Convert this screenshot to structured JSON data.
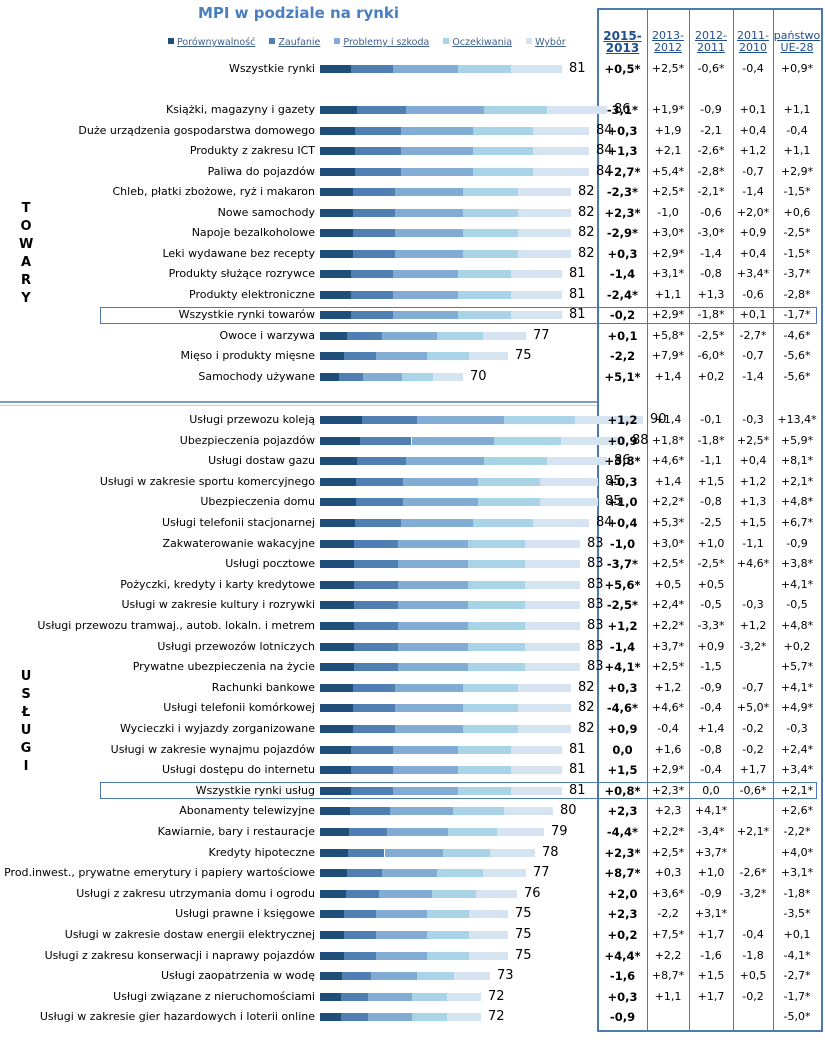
{
  "chart_data": {
    "type": "bar",
    "title": "MPI w podziale na rynki",
    "legend": [
      "Porównywalność",
      "Zaufanie",
      "Problemy i szkoda",
      "Oczekiwania",
      "Wybór"
    ],
    "colors": [
      "#1f4e79",
      "#4f7fb3",
      "#82acd4",
      "#a9d3e6",
      "#d6e3f1"
    ],
    "columns": [
      "2015-2013",
      "2013-2012",
      "2012-2011",
      "2011-2010",
      "państwo UE-28"
    ],
    "groups": [
      "TOWARY",
      "USŁUGI"
    ],
    "rows": [
      {
        "label": "Wszystkie rynki",
        "mpi": "81",
        "cells": [
          "+0,5*",
          "+2,5*",
          "-0,6*",
          "-0,4",
          "+0,9*"
        ]
      },
      {
        "label": "Książki, magazyny i gazety",
        "mpi": "86",
        "cells": [
          "-3,1*",
          "+1,9*",
          "-0,9",
          "+0,1",
          "+1,1"
        ]
      },
      {
        "label": "Duże urządzenia gospodarstwa domowego",
        "mpi": "84",
        "cells": [
          "+0,3",
          "+1,9",
          "-2,1",
          "+0,4",
          "-0,4"
        ]
      },
      {
        "label": "Produkty z zakresu ICT",
        "mpi": "84",
        "cells": [
          "+1,3",
          "+2,1",
          "-2,6*",
          "+1,2",
          "+1,1"
        ]
      },
      {
        "label": "Paliwa do pojazdów",
        "mpi": "84",
        "cells": [
          "+2,7*",
          "+5,4*",
          "-2,8*",
          "-0,7",
          "+2,9*"
        ]
      },
      {
        "label": "Chleb, płatki zbożowe, ryż i makaron",
        "mpi": "82",
        "cells": [
          "-2,3*",
          "+2,5*",
          "-2,1*",
          "-1,4",
          "-1,5*"
        ]
      },
      {
        "label": "Nowe samochody",
        "mpi": "82",
        "cells": [
          "+2,3*",
          "-1,0",
          "-0,6",
          "+2,0*",
          "+0,6"
        ]
      },
      {
        "label": "Napoje bezalkoholowe",
        "mpi": "82",
        "cells": [
          "-2,9*",
          "+3,0*",
          "-3,0*",
          "+0,9",
          "-2,5*"
        ]
      },
      {
        "label": "Leki wydawane bez recepty",
        "mpi": "82",
        "cells": [
          "+0,3",
          "+2,9*",
          "-1,4",
          "+0,4",
          "-1,5*"
        ]
      },
      {
        "label": "Produkty służące rozrywce",
        "mpi": "81",
        "cells": [
          "-1,4",
          "+3,1*",
          "-0,8",
          "+3,4*",
          "-3,7*"
        ]
      },
      {
        "label": "Produkty elektroniczne",
        "mpi": "81",
        "cells": [
          "-2,4*",
          "+1,1",
          "+1,3",
          "-0,6",
          "-2,8*"
        ]
      },
      {
        "label": "Wszystkie rynki towarów",
        "mpi": "81",
        "cells": [
          "-0,2",
          "+2,9*",
          "-1,8*",
          "+0,1",
          "-1,7*"
        ]
      },
      {
        "label": "Owoce i warzywa",
        "mpi": "77",
        "cells": [
          "+0,1",
          "+5,8*",
          "-2,5*",
          "-2,7*",
          "-4,6*"
        ]
      },
      {
        "label": "Mięso i produkty mięsne",
        "mpi": "75",
        "cells": [
          "-2,2",
          "+7,9*",
          "-6,0*",
          "-0,7",
          "-5,6*"
        ]
      },
      {
        "label": "Samochody używane",
        "mpi": "70",
        "cells": [
          "+5,1*",
          "+1,4",
          "+0,2",
          "-1,4",
          "-5,6*"
        ]
      },
      {
        "label": "Usługi przewozu koleją",
        "mpi": "90",
        "cells": [
          "+1,2",
          "+1,4",
          "-0,1",
          "-0,3",
          "+13,4*"
        ]
      },
      {
        "label": "Ubezpieczenia pojazdów",
        "mpi": "88",
        "cells": [
          "+0,9",
          "+1,8*",
          "-1,8*",
          "+2,5*",
          "+5,9*"
        ]
      },
      {
        "label": "Usługi dostaw gazu",
        "mpi": "86",
        "cells": [
          "+3,8*",
          "+4,6*",
          "-1,1",
          "+0,4",
          "+8,1*"
        ]
      },
      {
        "label": "Usługi w zakresie sportu komercyjnego",
        "mpi": "85",
        "cells": [
          "+0,3",
          "+1,4",
          "+1,5",
          "+1,2",
          "+2,1*"
        ]
      },
      {
        "label": "Ubezpieczenia domu",
        "mpi": "85",
        "cells": [
          "+1,0",
          "+2,2*",
          "-0,8",
          "+1,3",
          "+4,8*"
        ]
      },
      {
        "label": "Usługi telefonii stacjonarnej",
        "mpi": "84",
        "cells": [
          "+0,4",
          "+5,3*",
          "-2,5",
          "+1,5",
          "+6,7*"
        ]
      },
      {
        "label": "Zakwaterowanie wakacyjne",
        "mpi": "83",
        "cells": [
          "-1,0",
          "+3,0*",
          "+1,0",
          "-1,1",
          "-0,9"
        ]
      },
      {
        "label": "Usługi pocztowe",
        "mpi": "83",
        "cells": [
          "-3,7*",
          "+2,5*",
          "-2,5*",
          "+4,6*",
          "+3,8*"
        ]
      },
      {
        "label": "Pożyczki, kredyty i karty kredytowe",
        "mpi": "83",
        "cells": [
          "+5,6*",
          "+0,5",
          "+0,5",
          "",
          "+4,1*"
        ]
      },
      {
        "label": "Usługi w zakresie kultury i rozrywki",
        "mpi": "83",
        "cells": [
          "-2,5*",
          "+2,4*",
          "-0,5",
          "-0,3",
          "-0,5"
        ]
      },
      {
        "label": "Usługi przewozu tramwaj., autob. lokaln. i metrem",
        "mpi": "83",
        "cells": [
          "+1,2",
          "+2,2*",
          "-3,3*",
          "+1,2",
          "+4,8*"
        ]
      },
      {
        "label": "Usługi przewozów lotniczych",
        "mpi": "83",
        "cells": [
          "-1,4",
          "+3,7*",
          "+0,9",
          "-3,2*",
          "+0,2"
        ]
      },
      {
        "label": "Prywatne ubezpieczenia na życie",
        "mpi": "83",
        "cells": [
          "+4,1*",
          "+2,5*",
          "-1,5",
          "",
          "+5,7*"
        ]
      },
      {
        "label": "Rachunki bankowe",
        "mpi": "82",
        "cells": [
          "+0,3",
          "+1,2",
          "-0,9",
          "-0,7",
          "+4,1*"
        ]
      },
      {
        "label": "Usługi telefonii komórkowej",
        "mpi": "82",
        "cells": [
          "-4,6*",
          "+4,6*",
          "-0,4",
          "+5,0*",
          "+4,9*"
        ]
      },
      {
        "label": "Wycieczki i wyjazdy zorganizowane",
        "mpi": "82",
        "cells": [
          "+0,9",
          "-0,4",
          "+1,4",
          "-0,2",
          "-0,3"
        ]
      },
      {
        "label": "Usługi w zakresie wynajmu pojazdów",
        "mpi": "81",
        "cells": [
          "0,0",
          "+1,6",
          "-0,8",
          "-0,2",
          "+2,4*"
        ]
      },
      {
        "label": "Usługi dostępu do internetu",
        "mpi": "81",
        "cells": [
          "+1,5",
          "+2,9*",
          "-0,4",
          "+1,7",
          "+3,4*"
        ]
      },
      {
        "label": "Wszystkie rynki usług",
        "mpi": "81",
        "cells": [
          "+0,8*",
          "+2,3*",
          "0,0",
          "-0,6*",
          "+2,1*"
        ]
      },
      {
        "label": "Abonamenty telewizyjne",
        "mpi": "80",
        "cells": [
          "+2,3",
          "+2,3",
          "+4,1*",
          "",
          "+2,6*"
        ]
      },
      {
        "label": "Kawiarnie, bary i restauracje",
        "mpi": "79",
        "cells": [
          "-4,4*",
          "+2,2*",
          "-3,4*",
          "+2,1*",
          "-2,2*"
        ]
      },
      {
        "label": "Kredyty hipoteczne",
        "mpi": "78",
        "cells": [
          "+2,3*",
          "+2,5*",
          "+3,7*",
          "",
          "+4,0*"
        ]
      },
      {
        "label": "Prod.inwest., prywatne emerytury i papiery wartościowe",
        "mpi": "77",
        "cells": [
          "+8,7*",
          "+0,3",
          "+1,0",
          "-2,6*",
          "+3,1*"
        ]
      },
      {
        "label": "Usługi z zakresu utrzymania domu i ogrodu",
        "mpi": "76",
        "cells": [
          "+2,0",
          "+3,6*",
          "-0,9",
          "-3,2*",
          "-1,8*"
        ]
      },
      {
        "label": "Usługi prawne i księgowe",
        "mpi": "75",
        "cells": [
          "+2,3",
          "-2,2",
          "+3,1*",
          "",
          "-3,5*"
        ]
      },
      {
        "label": "Usługi w zakresie dostaw energii elektrycznej",
        "mpi": "75",
        "cells": [
          "+0,2",
          "+7,5*",
          "+1,7",
          "-0,4",
          "+0,1"
        ]
      },
      {
        "label": "Usługi z zakresu konserwacji i naprawy pojazdów",
        "mpi": "75",
        "cells": [
          "+4,4*",
          "+2,2",
          "-1,6",
          "-1,8",
          "-4,1*"
        ]
      },
      {
        "label": "Usługi zaopatrzenia w wodę",
        "mpi": "73",
        "cells": [
          "-1,6",
          "+8,7*",
          "+1,5",
          "+0,5",
          "-2,7*"
        ]
      },
      {
        "label": "Usługi związane z nieruchomościami",
        "mpi": "72",
        "cells": [
          "+0,3",
          "+1,1",
          "+1,7",
          "-0,2",
          "-1,7*"
        ]
      },
      {
        "label": "Usługi w zakresie gier hazardowych i loterii online",
        "mpi": "72",
        "cells": [
          "-0,9",
          "",
          "",
          "",
          "-5,0*"
        ]
      }
    ]
  }
}
